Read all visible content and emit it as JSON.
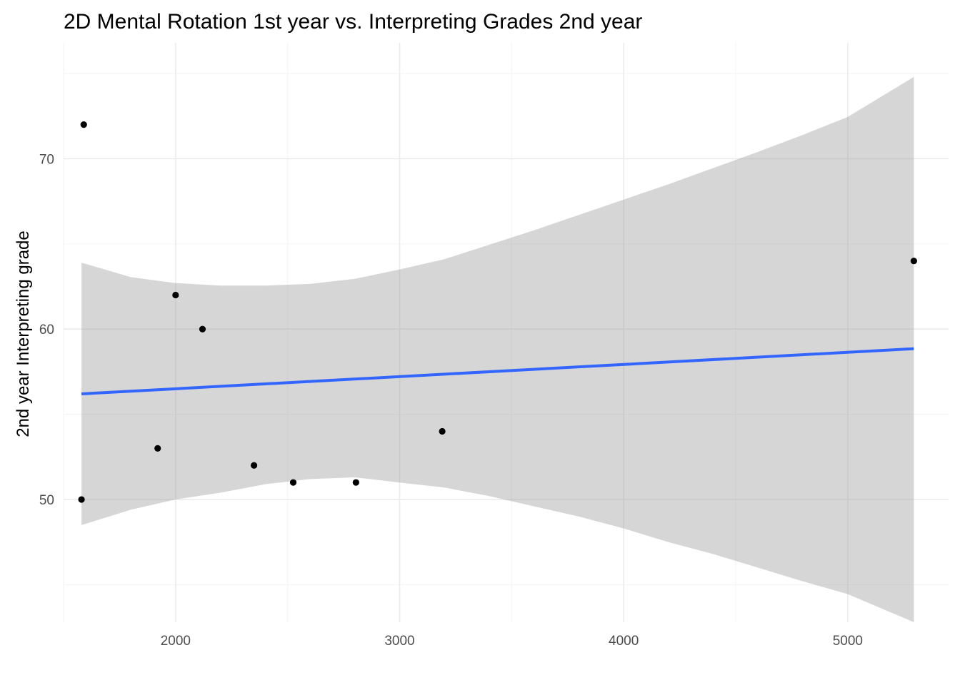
{
  "chart_data": {
    "type": "scatter",
    "title": "2D Mental Rotation 1st year vs. Interpreting Grades 2nd year",
    "xlabel": "",
    "ylabel": "2nd year Interpreting grade",
    "xlim": [
      1500,
      5450
    ],
    "ylim": [
      42.8,
      76.8
    ],
    "x_ticks": [
      2000,
      3000,
      4000,
      5000
    ],
    "x_minor_ticks": [
      1500,
      2500,
      3500,
      4500
    ],
    "y_ticks": [
      50,
      60,
      70
    ],
    "y_minor_ticks": [
      45,
      55,
      65,
      75
    ],
    "grid": true,
    "points": [
      {
        "x": 1590,
        "y": 72
      },
      {
        "x": 1580,
        "y": 50
      },
      {
        "x": 1920,
        "y": 53
      },
      {
        "x": 2000,
        "y": 62
      },
      {
        "x": 2120,
        "y": 60
      },
      {
        "x": 2350,
        "y": 52
      },
      {
        "x": 2525,
        "y": 51
      },
      {
        "x": 2805,
        "y": 51
      },
      {
        "x": 3190,
        "y": 54
      },
      {
        "x": 5295,
        "y": 64
      }
    ],
    "fit_line": {
      "x": [
        1580,
        5295
      ],
      "y": [
        56.2,
        58.85
      ]
    },
    "confidence_band": {
      "x": [
        1580,
        1800,
        2000,
        2200,
        2400,
        2600,
        2800,
        3000,
        3200,
        3400,
        3600,
        3800,
        4000,
        4200,
        4400,
        4600,
        4800,
        5000,
        5295
      ],
      "upper": [
        63.9,
        63.05,
        62.7,
        62.55,
        62.55,
        62.65,
        62.95,
        63.5,
        64.1,
        64.95,
        65.8,
        66.7,
        67.6,
        68.5,
        69.45,
        70.4,
        71.4,
        72.45,
        74.8
      ],
      "lower": [
        48.5,
        49.4,
        50.0,
        50.4,
        50.9,
        51.2,
        51.3,
        51.0,
        50.7,
        50.2,
        49.6,
        49.0,
        48.3,
        47.5,
        46.8,
        46.0,
        45.2,
        44.45,
        42.8
      ]
    },
    "colors": {
      "point": "#000000",
      "fit_line": "#3366ff",
      "band": "#999999",
      "grid_major": "#ebebeb",
      "grid_minor": "#f5f5f5",
      "tick_text": "#4d4d4d"
    }
  }
}
